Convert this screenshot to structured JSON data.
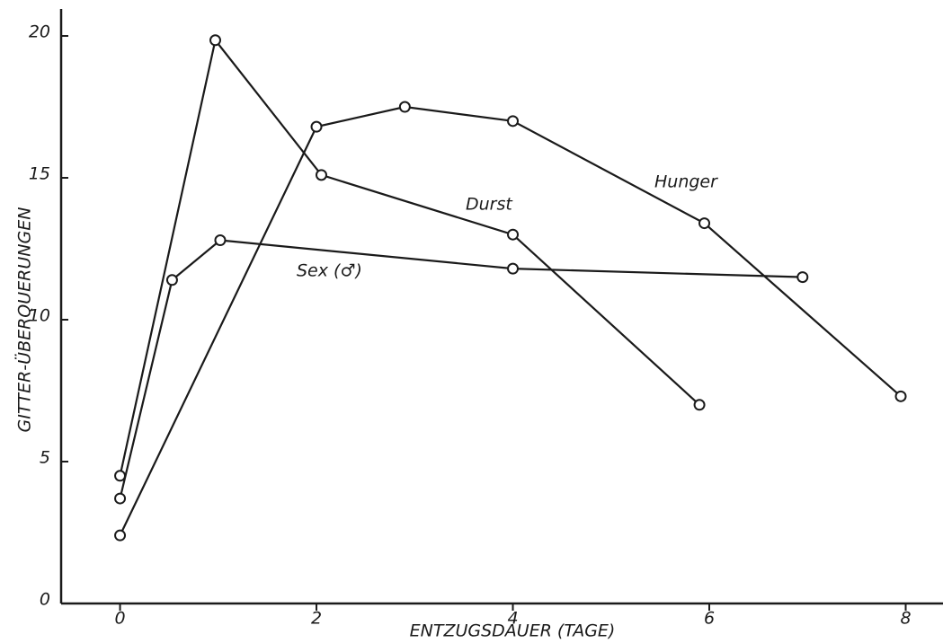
{
  "chart_data": {
    "type": "line",
    "xlabel": "ENTZUGSDAUER (TAGE)",
    "ylabel": "GITTER-ÜBERQUERUNGEN",
    "xlim": [
      -0.6,
      8.38
    ],
    "ylim": [
      0,
      20.95
    ],
    "xticks": [
      0,
      2,
      4,
      6,
      8
    ],
    "yticks": [
      0,
      5,
      10,
      15,
      20
    ],
    "series": [
      {
        "name": "Hunger",
        "color": "#1a1a1a",
        "x": [
          0,
          2,
          2.9,
          4,
          5.95,
          7.95
        ],
        "values": [
          2.4,
          16.8,
          17.5,
          17.0,
          13.4,
          7.3
        ]
      },
      {
        "name": "Durst",
        "color": "#1a1a1a",
        "x": [
          0,
          0.97,
          2.05,
          4,
          5.9
        ],
        "values": [
          4.5,
          19.85,
          15.1,
          13.0,
          7.0
        ]
      },
      {
        "name": "Sex (♂)",
        "color": "#1a1a1a",
        "x": [
          0,
          0.53,
          1.02,
          4,
          6.95
        ],
        "values": [
          3.7,
          11.4,
          12.8,
          11.8,
          11.5
        ]
      }
    ]
  }
}
